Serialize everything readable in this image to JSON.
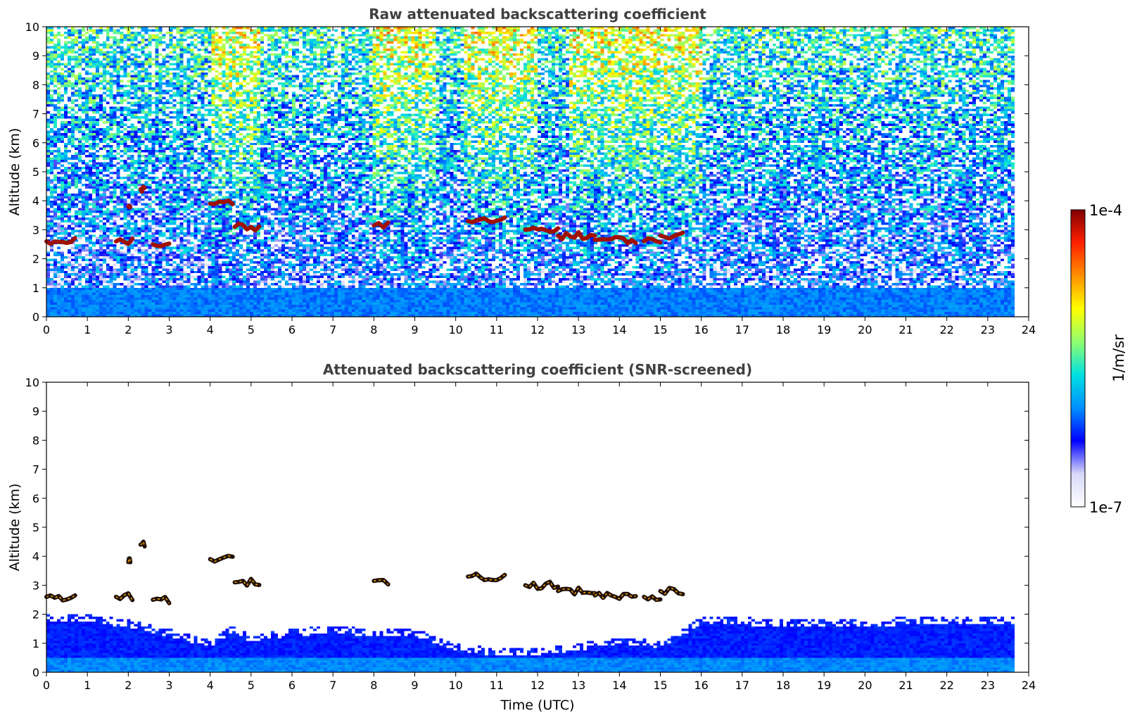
{
  "chart_data": [
    {
      "type": "heatmap",
      "title": "Raw attenuated backscattering coefficient",
      "xlabel": "",
      "ylabel": "Altitude (km)",
      "xlim": [
        0,
        24
      ],
      "ylim": [
        0,
        10
      ],
      "xticks": [
        "0",
        "1",
        "2",
        "3",
        "4",
        "5",
        "6",
        "7",
        "8",
        "9",
        "10",
        "11",
        "12",
        "13",
        "14",
        "15",
        "16",
        "17",
        "18",
        "19",
        "20",
        "21",
        "22",
        "23",
        "24"
      ],
      "yticks": [
        "0",
        "1",
        "2",
        "3",
        "4",
        "5",
        "6",
        "7",
        "8",
        "9",
        "10"
      ],
      "data_end_time": 23.7,
      "aerosol_layer_top_km": 1.0,
      "noisy_background": true,
      "elevated_noise_periods": [
        [
          4.0,
          5.2
        ],
        [
          8.0,
          9.5
        ],
        [
          10.2,
          12.0
        ],
        [
          12.8,
          16.0
        ]
      ],
      "cloud_segments": [
        {
          "t0": 0.0,
          "t1": 0.7,
          "alt": 2.6
        },
        {
          "t0": 1.7,
          "t1": 2.1,
          "alt": 2.6
        },
        {
          "t0": 2.0,
          "t1": 2.05,
          "alt": 3.8
        },
        {
          "t0": 2.3,
          "t1": 2.4,
          "alt": 4.4
        },
        {
          "t0": 2.6,
          "t1": 3.0,
          "alt": 2.5
        },
        {
          "t0": 4.0,
          "t1": 4.55,
          "alt": 3.9
        },
        {
          "t0": 4.6,
          "t1": 5.2,
          "alt": 3.1
        },
        {
          "t0": 8.0,
          "t1": 8.35,
          "alt": 3.15
        },
        {
          "t0": 10.3,
          "t1": 11.2,
          "alt": 3.3
        },
        {
          "t0": 11.7,
          "t1": 12.5,
          "alt": 3.0
        },
        {
          "t0": 12.5,
          "t1": 13.4,
          "alt": 2.8
        },
        {
          "t0": 13.4,
          "t1": 14.4,
          "alt": 2.65
        },
        {
          "t0": 14.6,
          "t1": 15.0,
          "alt": 2.6
        },
        {
          "t0": 15.0,
          "t1": 15.55,
          "alt": 2.8
        }
      ]
    },
    {
      "type": "heatmap",
      "title": "Attenuated backscattering coefficient (SNR-screened)",
      "xlabel": "Time (UTC)",
      "ylabel": "Altitude (km)",
      "xlim": [
        0,
        24
      ],
      "ylim": [
        0,
        10
      ],
      "xticks": [
        "0",
        "1",
        "2",
        "3",
        "4",
        "5",
        "6",
        "7",
        "8",
        "9",
        "10",
        "11",
        "12",
        "13",
        "14",
        "15",
        "16",
        "17",
        "18",
        "19",
        "20",
        "21",
        "22",
        "23",
        "24"
      ],
      "yticks": [
        "0",
        "1",
        "2",
        "3",
        "4",
        "5",
        "6",
        "7",
        "8",
        "9",
        "10"
      ],
      "data_end_time": 23.7,
      "screened_layer_top_km": [
        [
          0.0,
          2.0
        ],
        [
          1.0,
          2.0
        ],
        [
          2.0,
          1.8
        ],
        [
          3.0,
          1.5
        ],
        [
          4.0,
          1.1
        ],
        [
          4.5,
          1.6
        ],
        [
          5.0,
          1.3
        ],
        [
          6.0,
          1.5
        ],
        [
          7.0,
          1.6
        ],
        [
          8.0,
          1.5
        ],
        [
          9.0,
          1.5
        ],
        [
          10.0,
          1.0
        ],
        [
          11.0,
          0.8
        ],
        [
          12.0,
          0.8
        ],
        [
          13.0,
          1.0
        ],
        [
          14.0,
          1.2
        ],
        [
          15.0,
          1.1
        ],
        [
          16.0,
          1.9
        ],
        [
          17.0,
          1.9
        ],
        [
          18.0,
          1.8
        ],
        [
          19.0,
          1.8
        ],
        [
          20.0,
          1.8
        ],
        [
          21.0,
          1.9
        ],
        [
          22.0,
          1.9
        ],
        [
          23.0,
          1.9
        ],
        [
          23.7,
          1.9
        ]
      ]
    }
  ],
  "colorbar": {
    "label": "1/m/sr",
    "max_label": "1e-4",
    "min_label": "1e-7",
    "scale": "log",
    "colormap": [
      "#ffffff",
      "#d8d8f8",
      "#0000ff",
      "#0090ff",
      "#00e0e0",
      "#90ff70",
      "#ffff00",
      "#ff9000",
      "#ff2000",
      "#800000"
    ]
  }
}
